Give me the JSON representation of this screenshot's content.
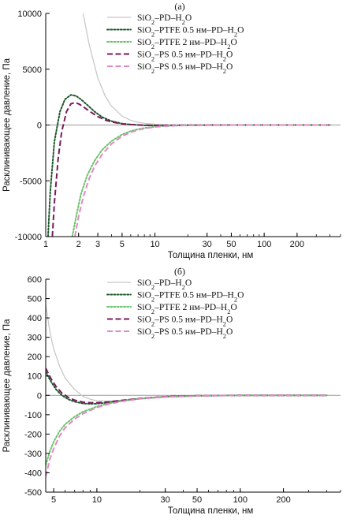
{
  "chart_data": [
    {
      "type": "line",
      "title": "(а)",
      "xlabel": "Толщина пленки, нм",
      "ylabel": "Расклинивающее давление, Па",
      "xscale": "log",
      "xlim": [
        1,
        500
      ],
      "ylim": [
        -10000,
        10000
      ],
      "xticks": [
        1,
        2,
        3,
        5,
        10,
        30,
        50,
        100,
        200
      ],
      "yticks": [
        -10000,
        -5000,
        0,
        5000,
        10000
      ],
      "grid": false,
      "legend_position": "top-right",
      "series": [
        {
          "name": "SiO₂–PD–H₂O",
          "color": "#c8c8c8",
          "dash": "solid",
          "x": [
            2.2,
            2.5,
            3,
            3.5,
            4,
            5,
            6,
            7,
            8,
            10,
            12,
            15,
            20,
            30,
            50,
            100,
            200,
            400
          ],
          "y": [
            10000,
            7200,
            4200,
            2600,
            1700,
            800,
            420,
            240,
            150,
            65,
            30,
            10,
            2,
            0,
            0,
            0,
            0,
            0
          ]
        },
        {
          "name": "SiO₂–PTFE 0.5 нм–PD–H₂O",
          "color": "#1d5a2c",
          "dash": "dotted",
          "x": [
            1.05,
            1.1,
            1.2,
            1.35,
            1.5,
            1.7,
            1.9,
            2.1,
            2.4,
            2.8,
            3.3,
            4,
            5,
            6,
            8,
            10,
            15,
            20,
            30,
            50,
            100,
            200,
            400
          ],
          "y": [
            -10000,
            -6000,
            -1500,
            1200,
            2300,
            2700,
            2600,
            2300,
            1800,
            1200,
            700,
            350,
            120,
            40,
            -30,
            -40,
            -30,
            -15,
            -5,
            0,
            0,
            0,
            0
          ]
        },
        {
          "name": "SiO₂–PTFE 2 нм–PD–H₂O",
          "color": "#6ac46a",
          "dash": "dotted",
          "x": [
            1.75,
            1.9,
            2.1,
            2.4,
            2.8,
            3.3,
            4,
            5,
            6,
            7,
            8,
            10,
            12,
            15,
            20,
            30,
            50,
            100,
            200,
            400
          ],
          "y": [
            -10000,
            -8200,
            -6200,
            -4500,
            -3200,
            -2200,
            -1450,
            -850,
            -550,
            -380,
            -270,
            -150,
            -90,
            -50,
            -25,
            -10,
            -3,
            0,
            0,
            0
          ]
        },
        {
          "name": "SiO₂–PS 0.5 нм–PD–H₂O",
          "color": "#7a1a5c",
          "dash": "dashed",
          "x": [
            1.15,
            1.2,
            1.3,
            1.4,
            1.55,
            1.7,
            1.85,
            2.0,
            2.2,
            2.5,
            3,
            3.5,
            4,
            5,
            6,
            8,
            10,
            15,
            20,
            30,
            50,
            100,
            200,
            400
          ],
          "y": [
            -10000,
            -7000,
            -3000,
            -600,
            1200,
            1900,
            2000,
            1900,
            1650,
            1250,
            750,
            450,
            280,
            110,
            40,
            -20,
            -35,
            -25,
            -12,
            -4,
            0,
            0,
            0,
            0
          ]
        },
        {
          "name": "SiO₂–PS 0.5 нм–PD–H₂O",
          "color": "#e28ac6",
          "dash": "dashed",
          "x": [
            1.85,
            2.0,
            2.2,
            2.5,
            2.8,
            3.3,
            4,
            5,
            6,
            7,
            8,
            10,
            12,
            15,
            20,
            30,
            50,
            100,
            200,
            400
          ],
          "y": [
            -10000,
            -8200,
            -6500,
            -4800,
            -3700,
            -2600,
            -1700,
            -1000,
            -650,
            -450,
            -320,
            -180,
            -110,
            -60,
            -30,
            -12,
            -4,
            0,
            0,
            0
          ]
        }
      ]
    },
    {
      "type": "line",
      "title": "(б)",
      "xlabel": "Толщина пленки, нм",
      "ylabel": "Расклинивающее давление, Па",
      "xscale": "log",
      "xlim": [
        4.4,
        500
      ],
      "ylim": [
        -500,
        600
      ],
      "xticks": [
        5,
        10,
        30,
        50,
        100,
        200
      ],
      "yticks": [
        -500,
        -400,
        -300,
        -200,
        -100,
        0,
        100,
        200,
        300,
        400,
        500,
        600
      ],
      "grid": false,
      "legend_position": "top-right",
      "series": [
        {
          "name": "SiO₂–PD–H₂O",
          "color": "#c8c8c8",
          "dash": "solid",
          "x": [
            4.4,
            4.7,
            5,
            5.5,
            6,
            7,
            8,
            9,
            10,
            12,
            15,
            20,
            30,
            50,
            100,
            200,
            400
          ],
          "y": [
            470,
            330,
            240,
            150,
            90,
            30,
            -5,
            -20,
            -28,
            -30,
            -25,
            -15,
            -6,
            -2,
            0,
            0,
            0
          ]
        },
        {
          "name": "SiO₂–PTFE 0.5 нм–PD–H₂O",
          "color": "#1d5a2c",
          "dash": "dotted",
          "x": [
            4.4,
            4.8,
            5.2,
            5.7,
            6.3,
            7,
            8,
            9,
            10,
            12,
            15,
            20,
            30,
            50,
            100,
            200,
            400
          ],
          "y": [
            120,
            70,
            30,
            0,
            -20,
            -33,
            -42,
            -44,
            -43,
            -37,
            -28,
            -17,
            -7,
            -2,
            0,
            0,
            0
          ]
        },
        {
          "name": "SiO₂–PTFE 2 нм–PD–H₂O",
          "color": "#6ac46a",
          "dash": "dotted",
          "x": [
            4.4,
            4.7,
            5,
            5.5,
            6,
            7,
            8,
            10,
            12,
            15,
            20,
            30,
            50,
            100,
            200,
            400
          ],
          "y": [
            -360,
            -290,
            -240,
            -185,
            -150,
            -110,
            -85,
            -58,
            -42,
            -29,
            -17,
            -8,
            -3,
            0,
            0,
            0
          ]
        },
        {
          "name": "SiO₂–PS 0.5 нм–PD–H₂O",
          "color": "#7a1a5c",
          "dash": "dashed",
          "x": [
            4.4,
            4.8,
            5.2,
            5.7,
            6.3,
            7,
            8,
            9,
            10,
            12,
            15,
            20,
            30,
            50,
            100,
            200,
            400
          ],
          "y": [
            140,
            85,
            45,
            12,
            -10,
            -25,
            -35,
            -38,
            -38,
            -34,
            -26,
            -16,
            -7,
            -2,
            0,
            0,
            0
          ]
        },
        {
          "name": "SiO₂–PS 0.5 нм–PD–H₂O",
          "color": "#e28ac6",
          "dash": "dashed",
          "x": [
            4.4,
            4.7,
            5,
            5.5,
            6,
            7,
            8,
            10,
            12,
            15,
            20,
            30,
            50,
            100,
            200,
            400
          ],
          "y": [
            -420,
            -330,
            -275,
            -210,
            -168,
            -122,
            -95,
            -63,
            -46,
            -31,
            -18,
            -8,
            -3,
            0,
            0,
            0
          ]
        }
      ]
    }
  ]
}
